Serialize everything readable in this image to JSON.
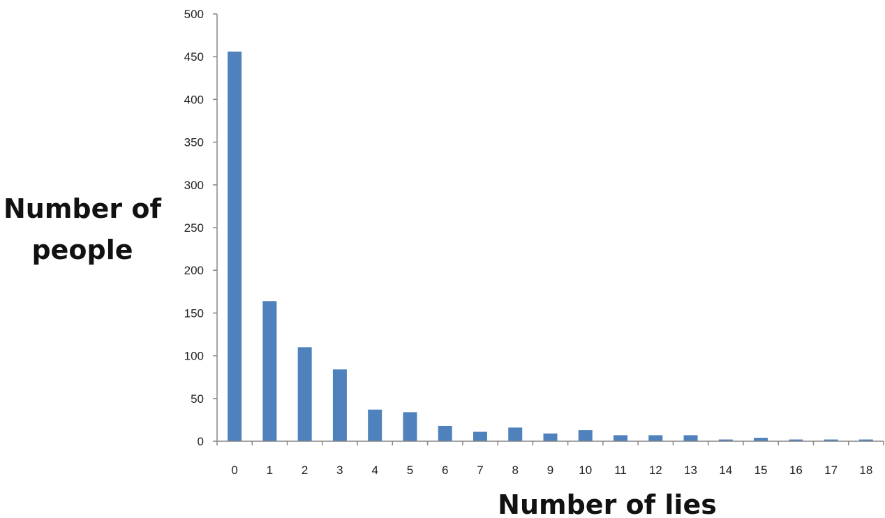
{
  "chart_data": {
    "type": "bar",
    "categories": [
      "0",
      "1",
      "2",
      "3",
      "4",
      "5",
      "6",
      "7",
      "8",
      "9",
      "10",
      "11",
      "12",
      "13",
      "14",
      "15",
      "16",
      "17",
      "18"
    ],
    "values": [
      456,
      164,
      110,
      84,
      37,
      34,
      18,
      11,
      16,
      9,
      13,
      7,
      7,
      7,
      2,
      4,
      2,
      2,
      2
    ],
    "title": "",
    "xlabel": "Number of lies",
    "ylabel_lines": [
      "Number of",
      "people"
    ],
    "ylim": [
      0,
      500
    ],
    "yticks": [
      0,
      50,
      100,
      150,
      200,
      250,
      300,
      350,
      400,
      450,
      500
    ],
    "grid": false,
    "legend": "none",
    "bar_color": "#4F81BD",
    "axis_color": "#868686"
  }
}
